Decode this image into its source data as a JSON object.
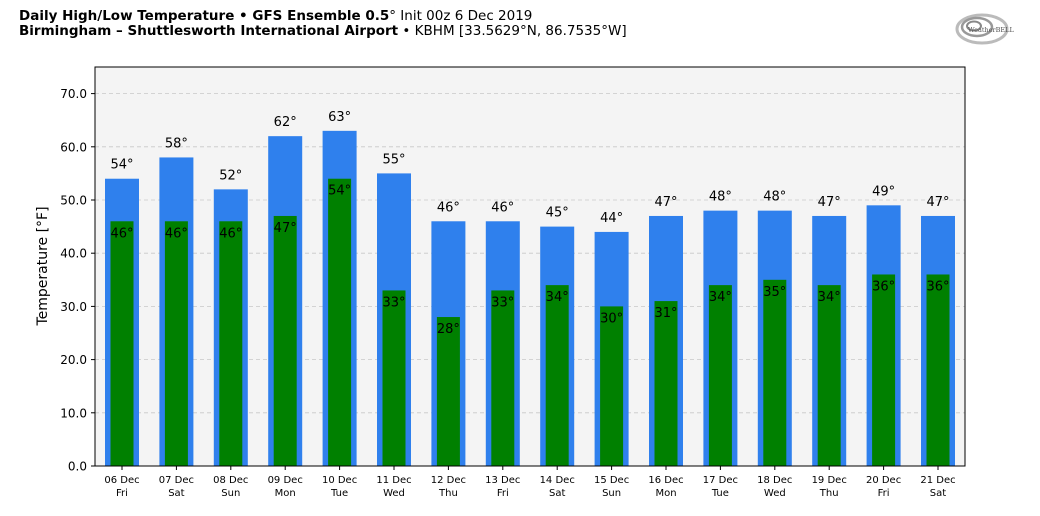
{
  "header": {
    "title_bold": "Daily High/Low Temperature • GFS Ensemble 0.5",
    "title_deg": "°",
    "title_rest": " Init 00z 6 Dec 2019",
    "subtitle_bold": "Birmingham – Shuttlesworth International Airport",
    "subtitle_rest": " • KBHM [33.5629°N, 86.7535°W]"
  },
  "logo": {
    "text": "WeatherBELL"
  },
  "chart_data": {
    "type": "bar",
    "categories": [
      "06 Dec",
      "07 Dec",
      "08 Dec",
      "09 Dec",
      "10 Dec",
      "11 Dec",
      "12 Dec",
      "13 Dec",
      "14 Dec",
      "15 Dec",
      "16 Dec",
      "17 Dec",
      "18 Dec",
      "19 Dec",
      "20 Dec",
      "21 Dec"
    ],
    "weekdays": [
      "Fri",
      "Sat",
      "Sun",
      "Mon",
      "Tue",
      "Wed",
      "Thu",
      "Fri",
      "Sat",
      "Sun",
      "Mon",
      "Tue",
      "Wed",
      "Thu",
      "Fri",
      "Sat"
    ],
    "series": [
      {
        "values": [
          54,
          58,
          52,
          62,
          63,
          55,
          46,
          46,
          45,
          44,
          47,
          48,
          48,
          47,
          49,
          47
        ],
        "color": "#2f80ed"
      },
      {
        "values": [
          46,
          46,
          46,
          47,
          54,
          33,
          28,
          33,
          34,
          30,
          31,
          34,
          35,
          34,
          36,
          36
        ],
        "color": "#008000"
      }
    ],
    "ylabel": "Temperature [°F]",
    "ylim": [
      0,
      75
    ],
    "yticks": [
      0,
      10,
      20,
      30,
      40,
      50,
      60,
      70
    ],
    "ytick_labels": [
      "0.0",
      "10.0",
      "20.0",
      "30.0",
      "40.0",
      "50.0",
      "60.0",
      "70.0"
    ],
    "label_suffix": "°",
    "grid": true,
    "plot_background": "#f4f4f4"
  }
}
